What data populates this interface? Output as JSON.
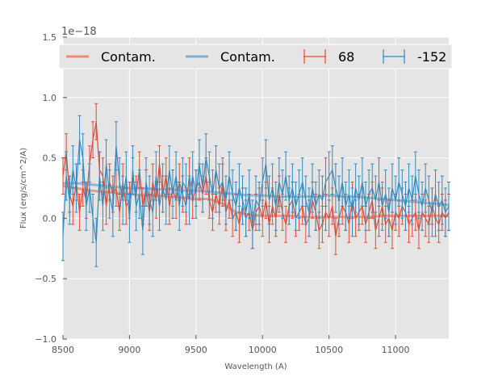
{
  "chart_data": {
    "type": "line",
    "title": "",
    "xlabel": "Wavelength (A)",
    "ylabel": "Flux (erg/s/cm^2/A)",
    "offset_text": "1e−18",
    "xlim": [
      8500,
      11400
    ],
    "ylim": [
      -1.0,
      1.5
    ],
    "xticks": [
      8500,
      9000,
      9500,
      10000,
      10500,
      11000
    ],
    "yticks": [
      -1.0,
      -0.5,
      0.0,
      0.5,
      1.0,
      1.5
    ],
    "ytick_labels": [
      "−1.0",
      "−0.5",
      "0.0",
      "0.5",
      "1.0",
      "1.5"
    ],
    "grid": true,
    "legend": {
      "placement": "top",
      "entries": [
        "Contam.",
        "Contam.",
        "68",
        "-152"
      ]
    },
    "colors": {
      "red": "#e24a33",
      "blue": "#348abd",
      "background": "#e5e5e5",
      "grid": "#ffffff",
      "contam_red": "#f08a76",
      "contam_blue": "#7fb0d2"
    },
    "series": [
      {
        "name": "68",
        "kind": "errorbar",
        "x": [
          8500,
          8525,
          8550,
          8575,
          8600,
          8625,
          8650,
          8675,
          8700,
          8725,
          8750,
          8775,
          8800,
          8825,
          8850,
          8875,
          8900,
          8925,
          8950,
          8975,
          9000,
          9025,
          9050,
          9075,
          9100,
          9125,
          9150,
          9175,
          9200,
          9225,
          9250,
          9275,
          9300,
          9325,
          9350,
          9375,
          9400,
          9425,
          9450,
          9475,
          9500,
          9525,
          9550,
          9575,
          9600,
          9625,
          9650,
          9675,
          9700,
          9725,
          9750,
          9775,
          9800,
          9825,
          9850,
          9875,
          9900,
          9925,
          9950,
          9975,
          10000,
          10025,
          10050,
          10075,
          10100,
          10125,
          10150,
          10175,
          10200,
          10225,
          10250,
          10275,
          10300,
          10325,
          10350,
          10375,
          10400,
          10425,
          10450,
          10475,
          10500,
          10525,
          10550,
          10575,
          10600,
          10625,
          10650,
          10675,
          10700,
          10725,
          10750,
          10775,
          10800,
          10825,
          10850,
          10875,
          10900,
          10925,
          10950,
          10975,
          11000,
          11025,
          11050,
          11075,
          11100,
          11125,
          11150,
          11175,
          11200,
          11225,
          11250,
          11275,
          11300,
          11325,
          11350,
          11375,
          11400
        ],
        "y": [
          0.35,
          0.55,
          0.2,
          0.1,
          0.3,
          0.05,
          0.25,
          0.15,
          0.45,
          0.65,
          0.8,
          0.4,
          0.35,
          0.1,
          0.3,
          0.2,
          0.25,
          0.05,
          0.3,
          0.1,
          0.15,
          0.35,
          0.2,
          0.4,
          0.1,
          0.25,
          0.05,
          0.3,
          0.15,
          0.45,
          0.2,
          0.35,
          0.1,
          0.25,
          0.15,
          0.3,
          0.2,
          0.1,
          0.35,
          0.15,
          0.25,
          0.3,
          0.2,
          0.35,
          0.15,
          0.05,
          0.2,
          0.1,
          0.3,
          0.05,
          0.15,
          0.0,
          0.05,
          -0.05,
          0.1,
          0.0,
          0.05,
          -0.1,
          0.05,
          0.1,
          0.0,
          0.15,
          -0.05,
          0.1,
          0.0,
          0.2,
          0.05,
          -0.05,
          0.1,
          0.15,
          0.0,
          0.05,
          0.1,
          -0.05,
          0.0,
          0.15,
          0.05,
          -0.1,
          -0.05,
          0.05,
          0.0,
          0.1,
          -0.15,
          0.0,
          0.1,
          0.05,
          -0.05,
          0.15,
          0.0,
          0.05,
          0.1,
          -0.05,
          0.05,
          0.15,
          -0.1,
          0.0,
          0.1,
          -0.05,
          0.0,
          -0.1,
          0.05,
          0.0,
          0.1,
          0.05,
          -0.05,
          0.0,
          0.05,
          -0.1,
          0.05,
          0.0,
          -0.05,
          0.1,
          0.0,
          -0.05,
          0.05,
          0.0,
          0.05
        ],
        "yerr": 0.15
      },
      {
        "name": "-152",
        "kind": "errorbar",
        "x": [
          8500,
          8525,
          8550,
          8575,
          8600,
          8625,
          8650,
          8675,
          8700,
          8725,
          8750,
          8775,
          8800,
          8825,
          8850,
          8875,
          8900,
          8925,
          8950,
          8975,
          9000,
          9025,
          9050,
          9075,
          9100,
          9125,
          9150,
          9175,
          9200,
          9225,
          9250,
          9275,
          9300,
          9325,
          9350,
          9375,
          9400,
          9425,
          9450,
          9475,
          9500,
          9525,
          9550,
          9575,
          9600,
          9625,
          9650,
          9675,
          9700,
          9725,
          9750,
          9775,
          9800,
          9825,
          9850,
          9875,
          9900,
          9925,
          9950,
          9975,
          10000,
          10025,
          10050,
          10075,
          10100,
          10125,
          10150,
          10175,
          10200,
          10225,
          10250,
          10275,
          10300,
          10325,
          10350,
          10375,
          10400,
          10425,
          10450,
          10475,
          10500,
          10525,
          10550,
          10575,
          10600,
          10625,
          10650,
          10675,
          10700,
          10725,
          10750,
          10775,
          10800,
          10825,
          10850,
          10875,
          10900,
          10925,
          10950,
          10975,
          11000,
          11025,
          11050,
          11075,
          11100,
          11125,
          11150,
          11175,
          11200,
          11225,
          11250,
          11275,
          11300,
          11325,
          11350,
          11375,
          11400
        ],
        "y": [
          -0.15,
          0.35,
          0.15,
          0.4,
          0.25,
          0.65,
          0.5,
          0.1,
          0.25,
          0.0,
          -0.2,
          0.35,
          0.1,
          0.45,
          0.2,
          0.05,
          0.6,
          0.3,
          0.15,
          0.35,
          0.0,
          0.4,
          0.1,
          0.2,
          -0.1,
          0.3,
          0.15,
          0.05,
          0.35,
          0.1,
          0.25,
          0.15,
          0.4,
          0.2,
          0.35,
          0.1,
          0.3,
          0.25,
          0.15,
          0.35,
          0.2,
          0.45,
          0.25,
          0.5,
          0.35,
          0.2,
          0.4,
          0.25,
          0.3,
          0.15,
          0.35,
          0.2,
          0.1,
          0.25,
          0.15,
          0.05,
          0.2,
          -0.05,
          0.15,
          0.1,
          0.3,
          0.45,
          0.15,
          0.25,
          0.1,
          0.3,
          0.2,
          0.35,
          0.15,
          0.25,
          0.1,
          0.2,
          0.3,
          0.15,
          0.05,
          0.25,
          0.1,
          0.2,
          0.15,
          0.3,
          0.35,
          0.4,
          0.25,
          0.15,
          0.3,
          0.1,
          0.2,
          0.05,
          0.25,
          0.15,
          0.3,
          0.1,
          0.2,
          0.25,
          0.15,
          0.3,
          0.1,
          0.2,
          0.05,
          0.25,
          0.15,
          0.3,
          0.2,
          0.1,
          0.25,
          0.15,
          0.35,
          0.2,
          0.1,
          0.25,
          0.15,
          0.05,
          0.2,
          0.1,
          0.15,
          0.05,
          0.1
        ],
        "yerr": 0.2
      },
      {
        "name": "Contam.",
        "kind": "line",
        "x": [
          8500,
          8600,
          8700,
          8800,
          8900,
          9000,
          9100,
          9200,
          9300,
          9400,
          9500,
          9600,
          9700,
          9800,
          9900,
          10000,
          10100,
          10200,
          10300,
          10400,
          10500,
          10600,
          10700,
          10800,
          10900,
          11000,
          11100,
          11200,
          11300,
          11400
        ],
        "y": [
          0.27,
          0.25,
          0.23,
          0.22,
          0.21,
          0.2,
          0.19,
          0.19,
          0.18,
          0.17,
          0.16,
          0.16,
          0.12,
          0.05,
          0.03,
          0.02,
          0.02,
          0.02,
          0.01,
          0.01,
          0.01,
          0.01,
          0.01,
          0.01,
          0.02,
          0.02,
          0.02,
          0.02,
          0.02,
          0.02
        ]
      },
      {
        "name": "Contam.",
        "kind": "line",
        "x": [
          8500,
          8600,
          8700,
          8800,
          8900,
          9000,
          9100,
          9200,
          9300,
          9400,
          9500,
          9600,
          9700,
          9800,
          9900,
          10000,
          10100,
          10200,
          10300,
          10400,
          10500,
          10600,
          10700,
          10800,
          10900,
          11000,
          11100,
          11200,
          11300,
          11400
        ],
        "y": [
          0.29,
          0.29,
          0.28,
          0.27,
          0.26,
          0.25,
          0.25,
          0.24,
          0.24,
          0.23,
          0.23,
          0.22,
          0.21,
          0.2,
          0.19,
          0.19,
          0.18,
          0.18,
          0.18,
          0.18,
          0.19,
          0.18,
          0.18,
          0.17,
          0.16,
          0.15,
          0.14,
          0.13,
          0.12,
          0.11
        ]
      }
    ]
  }
}
